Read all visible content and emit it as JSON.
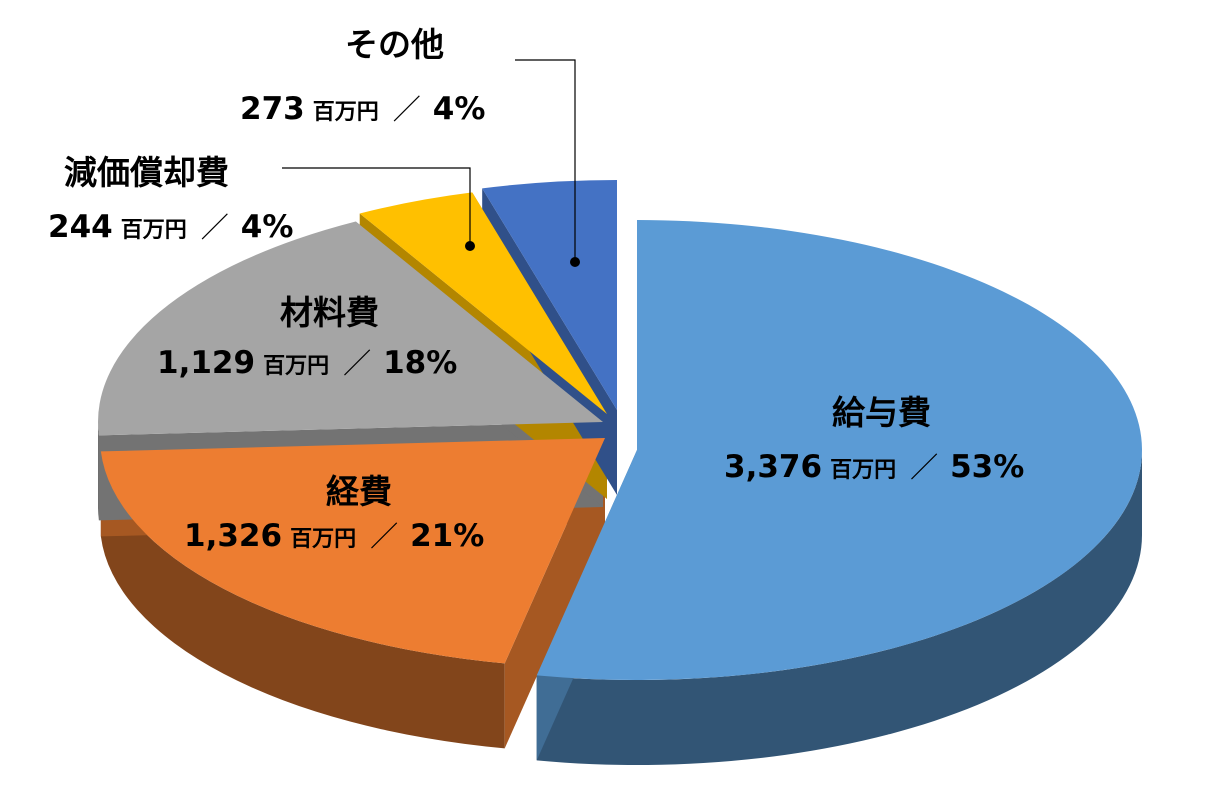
{
  "chart_data": {
    "type": "pie",
    "unit": "百万円",
    "separator": "／",
    "colors": {
      "blue": "#5b9bd5",
      "orange": "#ed7d31",
      "gray": "#a5a5a5",
      "yellow": "#ffc000",
      "darkblue": "#4472c4"
    },
    "slices": [
      {
        "name": "給与費",
        "value": 3376,
        "value_text": "3,376",
        "percent": 53,
        "percent_text": "53%",
        "color": "#5b9bd5"
      },
      {
        "name": "経費",
        "value": 1326,
        "value_text": "1,326",
        "percent": 21,
        "percent_text": "21%",
        "color": "#ed7d31"
      },
      {
        "name": "材料費",
        "value": 1129,
        "value_text": "1,129",
        "percent": 18,
        "percent_text": "18%",
        "color": "#a5a5a5"
      },
      {
        "name": "減価償却費",
        "value": 244,
        "value_text": "244",
        "percent": 4,
        "percent_text": "4%",
        "color": "#ffc000"
      },
      {
        "name": "その他",
        "value": 273,
        "value_text": "273",
        "percent": 4,
        "percent_text": "4%",
        "color": "#4472c4"
      }
    ]
  }
}
